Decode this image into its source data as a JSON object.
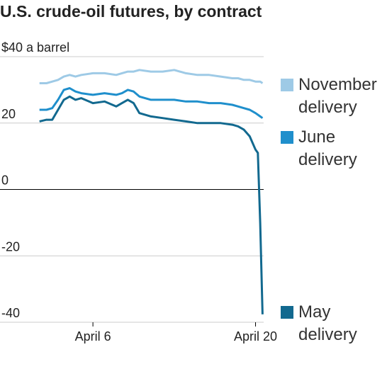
{
  "chart_data": {
    "type": "line",
    "title": "U.S. crude-oil futures, by contract",
    "x": [
      1.4,
      2,
      2.5,
      3,
      3.5,
      4,
      4.5,
      5,
      6,
      7,
      8,
      8.5,
      9,
      9.5,
      10,
      11,
      12,
      13,
      14,
      15,
      16,
      17,
      18,
      18.5,
      19,
      19.5,
      20,
      20.2,
      20.4,
      20.6
    ],
    "series": [
      {
        "name": "November delivery",
        "color": "#9ecae6",
        "values": [
          32,
          32,
          32.5,
          33,
          34,
          34.5,
          34,
          34.5,
          35,
          35,
          34.5,
          35,
          35.5,
          35.5,
          36,
          35.5,
          35.5,
          36,
          35,
          34.5,
          34.5,
          34,
          33.5,
          33.5,
          33,
          33,
          32.5,
          32.5,
          32.5,
          32
        ]
      },
      {
        "name": "June delivery",
        "color": "#1f8fcc",
        "values": [
          24,
          24,
          24.5,
          27,
          30,
          30.5,
          29.5,
          29,
          28.5,
          29,
          28.5,
          29,
          30,
          29.5,
          28,
          27,
          27,
          27,
          26.5,
          26.5,
          26,
          26,
          25.5,
          25,
          24.5,
          24,
          23,
          22.5,
          22,
          21.5
        ]
      },
      {
        "name": "May delivery",
        "color": "#12698f",
        "values": [
          20.5,
          21,
          21,
          24,
          27,
          28,
          27,
          27.5,
          26,
          26.5,
          25,
          26,
          27,
          26,
          23,
          22,
          21.5,
          21,
          20.5,
          20,
          20,
          20,
          19.5,
          19,
          18,
          16,
          12,
          11,
          -10,
          -37.6
        ]
      }
    ],
    "xlim": [
      -2,
      20.7
    ],
    "xticks": [
      {
        "value": 6,
        "label": "April 6"
      },
      {
        "value": 20,
        "label": "April 20"
      }
    ],
    "ylim": [
      -40,
      40
    ],
    "yticks": [
      {
        "value": 40,
        "label": "$40 a barrel"
      },
      20,
      0,
      -20,
      -40
    ],
    "grid": true
  }
}
